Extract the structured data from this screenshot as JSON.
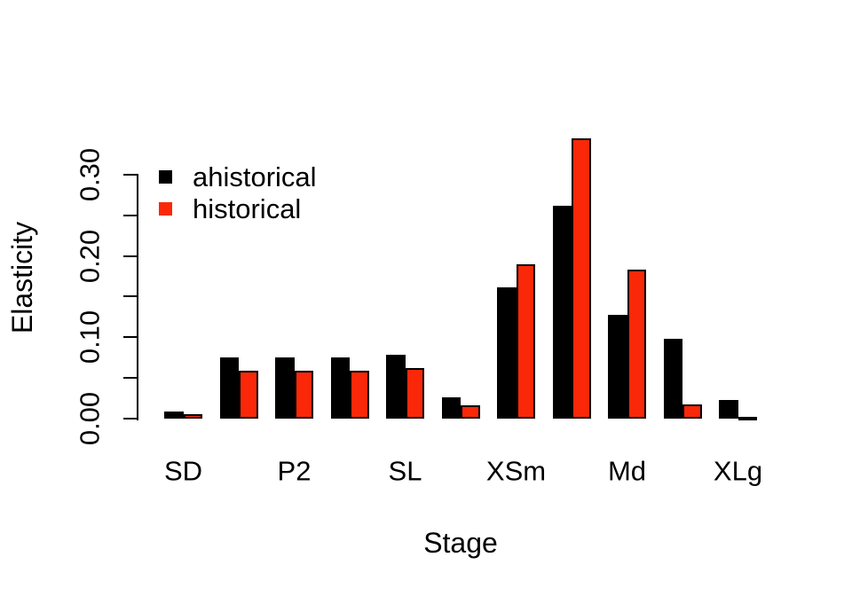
{
  "chart_data": {
    "type": "bar",
    "title": "",
    "xlabel": "Stage",
    "ylabel": "Elasticity",
    "categories": [
      "SD",
      "",
      "P2",
      "",
      "SL",
      "",
      "XSm",
      "",
      "Md",
      "",
      "XLg"
    ],
    "series": [
      {
        "name": "ahistorical",
        "color": "#000000",
        "values": [
          0.009,
          0.075,
          0.075,
          0.075,
          0.078,
          0.026,
          0.161,
          0.262,
          0.128,
          0.098,
          0.023
        ]
      },
      {
        "name": "historical",
        "color": "#FA2808",
        "values": [
          0.005,
          0.059,
          0.059,
          0.059,
          0.062,
          0.016,
          0.19,
          0.345,
          0.183,
          0.017,
          0.001
        ]
      }
    ],
    "ylim": [
      0,
      0.345
    ],
    "yticks": [
      {
        "v": 0.0,
        "label": "0.00"
      },
      {
        "v": 0.05,
        "label": ""
      },
      {
        "v": 0.1,
        "label": "0.10"
      },
      {
        "v": 0.15,
        "label": ""
      },
      {
        "v": 0.2,
        "label": "0.20"
      },
      {
        "v": 0.25,
        "label": ""
      },
      {
        "v": 0.3,
        "label": "0.30"
      }
    ],
    "grid": false,
    "legend_position": "top-left",
    "bar_border_color": "#000000",
    "background_color": "#FFFFFF"
  }
}
